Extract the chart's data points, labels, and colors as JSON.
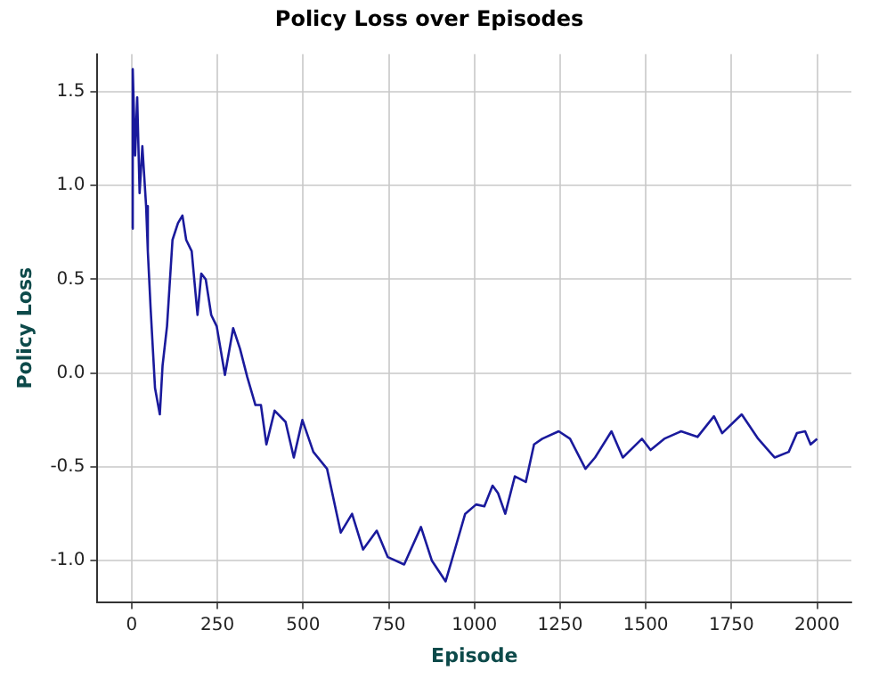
{
  "chart_data": {
    "type": "line",
    "title": "Policy Loss over Episodes",
    "xlabel": "Episode",
    "ylabel": "Policy Loss",
    "x": [
      1,
      3,
      10,
      16,
      23,
      31,
      42,
      47,
      55,
      68,
      82,
      90,
      103,
      119,
      135,
      148,
      159,
      175,
      192,
      203,
      216,
      232,
      248,
      272,
      296,
      316,
      337,
      361,
      377,
      393,
      417,
      449,
      473,
      498,
      530,
      570,
      610,
      643,
      675,
      715,
      747,
      795,
      844,
      876,
      916,
      932,
      973,
      1005,
      1029,
      1053,
      1069,
      1090,
      1118,
      1150,
      1174,
      1198,
      1246,
      1279,
      1324,
      1352,
      1400,
      1433,
      1489,
      1514,
      1554,
      1603,
      1651,
      1699,
      1723,
      1780,
      1828,
      1876,
      1917,
      1941,
      1965,
      1981,
      2000
    ],
    "series": [
      {
        "color": "#1a1a9c",
        "values": [
          0.77,
          1.62,
          1.16,
          1.47,
          0.96,
          1.21,
          0.89,
          0.65,
          0.35,
          -0.08,
          -0.22,
          0.04,
          0.25,
          0.71,
          0.8,
          0.84,
          0.71,
          0.65,
          0.31,
          0.53,
          0.5,
          0.31,
          0.25,
          -0.01,
          0.24,
          0.13,
          -0.02,
          -0.17,
          -0.17,
          -0.38,
          -0.2,
          -0.26,
          -0.45,
          -0.25,
          -0.42,
          -0.51,
          -0.85,
          -0.75,
          -0.94,
          -0.84,
          -0.98,
          -1.02,
          -0.82,
          -1.0,
          -1.11,
          -1.01,
          -0.75,
          -0.7,
          -0.71,
          -0.6,
          -0.64,
          -0.75,
          -0.55,
          -0.58,
          -0.38,
          -0.35,
          -0.31,
          -0.35,
          -0.51,
          -0.45,
          -0.31,
          -0.45,
          -0.35,
          -0.41,
          -0.35,
          -0.31,
          -0.34,
          -0.23,
          -0.32,
          -0.22,
          -0.35,
          -0.45,
          -0.42,
          -0.32,
          -0.31,
          -0.38,
          -0.35
        ]
      }
    ],
    "xlim": [
      -100,
      2100
    ],
    "ylim": [
      -1.22,
      1.7
    ],
    "xticks": [
      0,
      250,
      500,
      750,
      1000,
      1250,
      1500,
      1750,
      2000
    ],
    "yticks": [
      {
        "value": -1,
        "label": "-1.0"
      },
      {
        "value": -0.5,
        "label": "-0.5"
      },
      {
        "value": 0,
        "label": "0.0"
      },
      {
        "value": 0.5,
        "label": "0.5"
      },
      {
        "value": 1,
        "label": "1.0"
      },
      {
        "value": 1.5,
        "label": "1.5"
      }
    ],
    "grid": true,
    "legend": false,
    "marker": "none",
    "line_style": "solid"
  }
}
